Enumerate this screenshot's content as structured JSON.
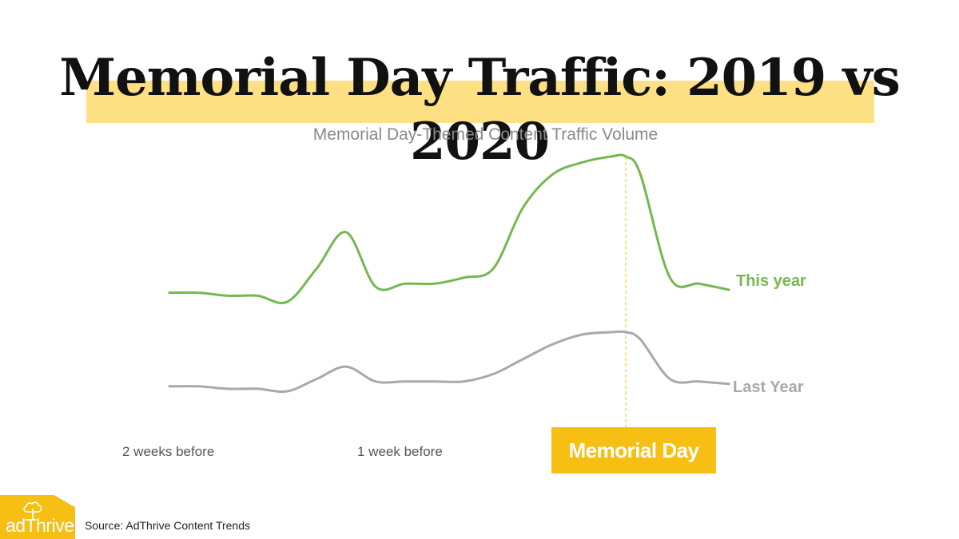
{
  "chart_data": {
    "type": "line",
    "title": "Memorial Day Traffic: 2019 vs 2020",
    "subtitle": "Memorial Day-Themed Content Traffic Volume",
    "x_tick_labels": [
      "2 weeks before",
      "1 week before"
    ],
    "y_axis": "hidden",
    "ylim": [
      0,
      100
    ],
    "grid": false,
    "highlight": {
      "label": "Memorial Day",
      "day": 15.5
    },
    "x": [
      0,
      1,
      2,
      3,
      4,
      5,
      6,
      7,
      8,
      9,
      10,
      11,
      12,
      13,
      14,
      15,
      15.5,
      16,
      17,
      18,
      19
    ],
    "series": [
      {
        "name": "This year",
        "color": "#72b94f",
        "values": [
          55,
          55,
          54,
          54,
          52,
          63,
          75,
          57,
          58,
          58,
          60,
          63,
          83,
          94,
          98,
          100,
          100,
          94,
          60,
          58,
          56
        ]
      },
      {
        "name": "Last Year",
        "color": "#a9a9a9",
        "values": [
          19,
          19,
          18,
          18,
          17,
          22,
          27,
          21,
          21,
          21,
          21,
          24,
          30,
          36,
          40,
          41,
          41,
          38,
          22,
          21,
          20
        ]
      }
    ]
  },
  "source": "Source: AdThrive Content Trends",
  "logo": {
    "text": "adThrive",
    "icon": "tree-icon"
  },
  "colors": {
    "accent": "#f7be13",
    "title_highlight": "#fde083",
    "this_year": "#72b94f",
    "last_year": "#a9a9a9"
  }
}
